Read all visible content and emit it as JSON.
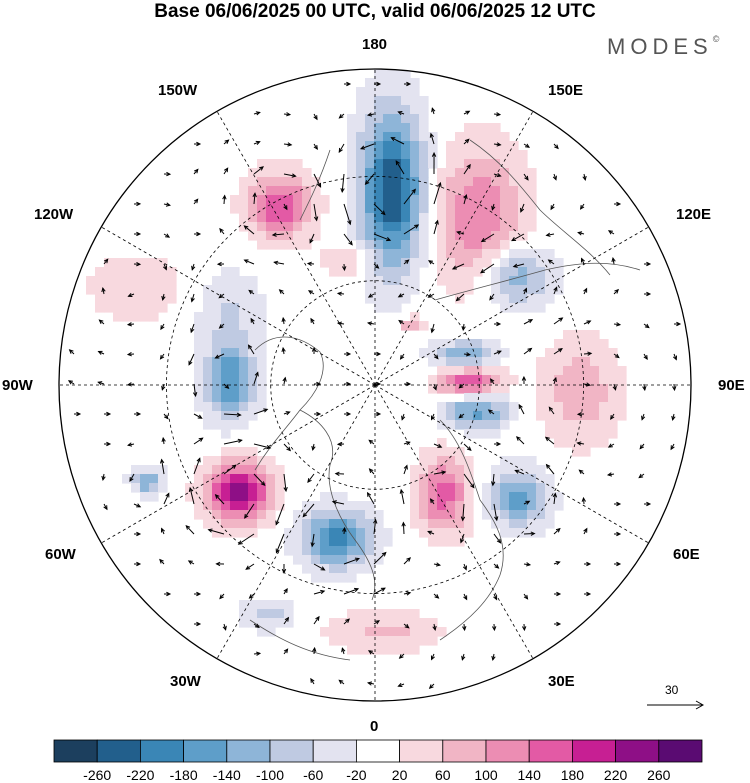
{
  "header": {
    "title": "Base 06/06/2025 00 UTC, valid 06/06/2025 12 UTC",
    "brand": "MODES",
    "brand_mark": "©"
  },
  "longitude_labels": {
    "lon_180": "180",
    "lon_150e": "150E",
    "lon_120e": "120E",
    "lon_90e": "90E",
    "lon_60e": "60E",
    "lon_30e": "30E",
    "lon_0": "0",
    "lon_30w": "30W",
    "lon_60w": "60W",
    "lon_90w": "90W",
    "lon_120w": "120W",
    "lon_150w": "150W"
  },
  "wind_scale": {
    "value": "30"
  },
  "colorbar": {
    "ticks": [
      "-260",
      "-220",
      "-180",
      "-140",
      "-100",
      "-60",
      "-20",
      "20",
      "60",
      "100",
      "140",
      "180",
      "220",
      "260"
    ],
    "colors": [
      "#1c3f5e",
      "#225f8c",
      "#3a86b6",
      "#5e9ec9",
      "#8eb5d8",
      "#bfcae2",
      "#e3e3f0",
      "#ffffff",
      "#f8d9df",
      "#f1b5c5",
      "#ec8db3",
      "#e35aa5",
      "#c71f93",
      "#8e0f86",
      "#5a0b72"
    ]
  },
  "map": {
    "projection": "polar stereographic, north pole",
    "anomalies": [
      {
        "lon": 175,
        "r": 0.62,
        "value": -260,
        "sx": 0.1,
        "sy": 0.25
      },
      {
        "lon": 148,
        "r": 0.62,
        "value": 140,
        "sx": 0.14,
        "sy": 0.22
      },
      {
        "lon": 128,
        "r": 0.56,
        "value": -140,
        "sx": 0.12,
        "sy": 0.1
      },
      {
        "lon": -152,
        "r": 0.64,
        "value": 180,
        "sx": 0.1,
        "sy": 0.1
      },
      {
        "lon": 92,
        "r": 0.3,
        "value": 200,
        "sx": 0.1,
        "sy": 0.05
      },
      {
        "lon": 76,
        "r": 0.33,
        "value": -160,
        "sx": 0.1,
        "sy": 0.06
      },
      {
        "lon": 108,
        "r": 0.3,
        "value": -140,
        "sx": 0.1,
        "sy": 0.05
      },
      {
        "lon": 88,
        "r": 0.65,
        "value": 90,
        "sx": 0.12,
        "sy": 0.16
      },
      {
        "lon": -92,
        "r": 0.46,
        "value": -180,
        "sx": 0.08,
        "sy": 0.12
      },
      {
        "lon": -52,
        "r": 0.55,
        "value": 260,
        "sx": 0.1,
        "sy": 0.09
      },
      {
        "lon": -67,
        "r": 0.78,
        "value": -140,
        "sx": 0.05,
        "sy": 0.04
      },
      {
        "lon": -14,
        "r": 0.5,
        "value": -200,
        "sx": 0.11,
        "sy": 0.09
      },
      {
        "lon": 32,
        "r": 0.41,
        "value": 160,
        "sx": 0.08,
        "sy": 0.12
      },
      {
        "lon": 52,
        "r": 0.58,
        "value": -160,
        "sx": 0.09,
        "sy": 0.09
      },
      {
        "lon": -112,
        "r": 0.82,
        "value": 60,
        "sx": 0.14,
        "sy": 0.1
      },
      {
        "lon": 2,
        "r": 0.78,
        "value": 70,
        "sx": 0.18,
        "sy": 0.06
      },
      {
        "lon": -25,
        "r": 0.8,
        "value": -80,
        "sx": 0.08,
        "sy": 0.05
      },
      {
        "lon": -118,
        "r": 0.52,
        "value": -60,
        "sx": 0.1,
        "sy": 0.12
      },
      {
        "lon": -168,
        "r": 0.4,
        "value": 60,
        "sx": 0.08,
        "sy": 0.06
      },
      {
        "lon": 150,
        "r": 0.22,
        "value": 80,
        "sx": 0.04,
        "sy": 0.03
      }
    ]
  }
}
